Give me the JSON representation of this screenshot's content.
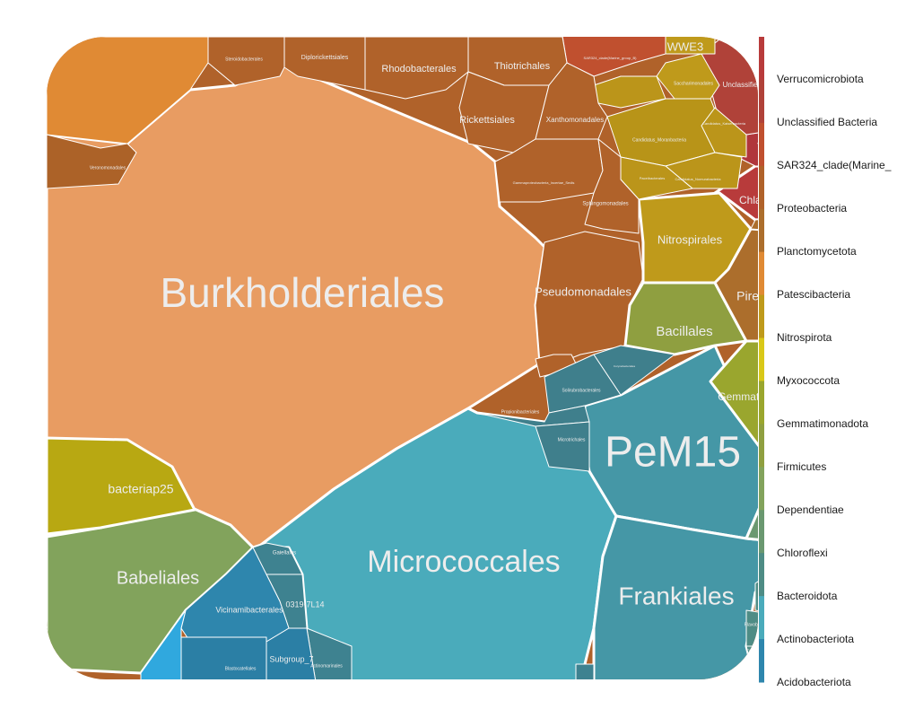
{
  "chart_data": {
    "type": "voronoi_treemap",
    "title": "",
    "levels": [
      "phylum",
      "order"
    ],
    "legend": {
      "placement": "right",
      "entries": [
        {
          "label": "Verrucomicrobiota",
          "color": "#b83b3b"
        },
        {
          "label": "Unclassified Bacteria",
          "color": "#b04239"
        },
        {
          "label": "SAR324_clade(Marine_",
          "color": "#c0502f"
        },
        {
          "label": "Proteobacteria",
          "color": "#b0622a"
        },
        {
          "label": "Planctomycetota",
          "color": "#ac6e2c"
        },
        {
          "label": "Patescibacteria",
          "color": "#e08a34"
        },
        {
          "label": "Nitrospirota",
          "color": "#bf9a1b"
        },
        {
          "label": "Myxococcota",
          "color": "#d9c818"
        },
        {
          "label": "Gemmatimonadota",
          "color": "#9aa62e"
        },
        {
          "label": "Firmicutes",
          "color": "#8f9f40"
        },
        {
          "label": "Dependentiae",
          "color": "#82a35c"
        },
        {
          "label": "Chloroflexi",
          "color": "#6a9870"
        },
        {
          "label": "Bacteroidota",
          "color": "#4e8c85"
        },
        {
          "label": "Actinobacteriota",
          "color": "#4aabbb"
        },
        {
          "label": "Acidobacteriota",
          "color": "#2e86ad"
        }
      ]
    },
    "cells": [
      {
        "id": "burkholderiales",
        "label": "Burkholderiales",
        "group": "Proteobacteria",
        "color": "#e89c62"
      },
      {
        "id": "micrococcales",
        "label": "Micrococcales",
        "group": "Actinobacteriota",
        "color": "#4aabbb"
      },
      {
        "id": "pem15",
        "label": "PeM15",
        "group": "Actinobacteriota",
        "color": "#4597a6"
      },
      {
        "id": "frankiales",
        "label": "Frankiales",
        "group": "Actinobacteriota",
        "color": "#4597a6"
      },
      {
        "id": "babeliales",
        "label": "Babeliales",
        "group": "Dependentiae",
        "color": "#82a35c"
      },
      {
        "id": "bacteriap25",
        "label": "bacteriap25",
        "group": "Myxococcota",
        "color": "#b8a812"
      },
      {
        "id": "pseudomonadales",
        "label": "Pseudomonadales",
        "group": "Proteobacteria",
        "color": "#b0622a"
      },
      {
        "id": "nitrospirales",
        "label": "Nitrospirales",
        "group": "Nitrospirota",
        "color": "#bf9a1b"
      },
      {
        "id": "bacillales",
        "label": "Bacillales",
        "group": "Firmicutes",
        "color": "#8f9f40"
      },
      {
        "id": "gemmatimonadales",
        "label": "Gemmatimonadales",
        "group": "Gemmatimonadota",
        "color": "#9aa62e"
      },
      {
        "id": "pirellulales",
        "label": "Pirellulales",
        "group": "Planctomycetota",
        "color": "#ac6e2c"
      },
      {
        "id": "chlamydiales",
        "label": "Chlamydiales",
        "group": "Verrucomicrobiota",
        "color": "#b83b3b"
      },
      {
        "id": "verrucomicrobiales",
        "label": "Verrucomicrobiales",
        "group": "Verrucomicrobiota",
        "color": "#b0363b"
      },
      {
        "id": "unclassified-bacteria",
        "label": "Unclassified Bacteria",
        "group": "Unclassified Bacteria",
        "color": "#b04239"
      },
      {
        "id": "sar324",
        "label": "SAR324_clade(Marine_group_B)",
        "group": "SAR324_clade(Marine_",
        "color": "#c0502f"
      },
      {
        "id": "wwe3",
        "label": "WWE3",
        "group": "Patescibacteria",
        "color": "#bf9a1b"
      },
      {
        "id": "saccharimonadales",
        "label": "Saccharimonadales",
        "group": "Patescibacteria",
        "color": "#bf9a1b"
      },
      {
        "id": "candidatus-moranbacteria",
        "label": "Candidatus_Moranbacteria",
        "group": "Patescibacteria",
        "color": "#b89418"
      },
      {
        "id": "candidatus-kaiserbacteria",
        "label": "Candidatus_Kaiserbacteria",
        "group": "Patescibacteria",
        "color": "#bb951a"
      },
      {
        "id": "candidatus-nomurabacteria",
        "label": "Candidatus_Nomurabacteria",
        "group": "Patescibacteria",
        "color": "#bb951a"
      },
      {
        "id": "paceibacterales",
        "label": "Paceibacterales",
        "group": "Patescibacteria",
        "color": "#bb951a"
      },
      {
        "id": "patescibacteria-small",
        "label": "",
        "group": "Patescibacteria",
        "color": "#bb951a"
      },
      {
        "id": "unlabeled-orange",
        "label": "",
        "group": "Patescibacteria",
        "color": "#e08a34"
      },
      {
        "id": "thiotrichales",
        "label": "Thiotrichales",
        "group": "Proteobacteria",
        "color": "#b0622a"
      },
      {
        "id": "rhodobacterales",
        "label": "Rhodobacterales",
        "group": "Proteobacteria",
        "color": "#b0622a"
      },
      {
        "id": "diplorickettsiales",
        "label": "Diplorickettsiales",
        "group": "Proteobacteria",
        "color": "#b0622a"
      },
      {
        "id": "steroidobacterales",
        "label": "Steroidobacterales",
        "group": "Proteobacteria",
        "color": "#b0622a"
      },
      {
        "id": "rickettsiales",
        "label": "Rickettsiales",
        "group": "Proteobacteria",
        "color": "#b0622a"
      },
      {
        "id": "xanthomonadales",
        "label": "Xanthomonadales",
        "group": "Proteobacteria",
        "color": "#b0622a"
      },
      {
        "id": "gammaproteobacteria-is",
        "label": "Gammaproteobacteria_Incertae_Sedis",
        "group": "Proteobacteria",
        "color": "#b0622a"
      },
      {
        "id": "sphingomonadales",
        "label": "Sphingomonadales",
        "group": "Proteobacteria",
        "color": "#b0622a"
      },
      {
        "id": "veronomonadales",
        "label": "Veronomonadales",
        "group": "Proteobacteria",
        "color": "#ac6228"
      },
      {
        "id": "proteo-small",
        "label": "",
        "group": "Proteobacteria",
        "color": "#b0622a"
      },
      {
        "id": "plancto-small",
        "label": "Planctomycetales",
        "group": "Planctomycetota",
        "color": "#ac6e2c"
      },
      {
        "id": "solirubrobacterales",
        "label": "Solirubrobacterales",
        "group": "Actinobacteriota",
        "color": "#3f7f8c"
      },
      {
        "id": "propionibacteriales",
        "label": "Propionibacteriales",
        "group": "Actinobacteriota",
        "color": "#3f7f8c"
      },
      {
        "id": "microtrichales",
        "label": "Microtrichales",
        "group": "Actinobacteriota",
        "color": "#3f7f8c"
      },
      {
        "id": "actino-top",
        "label": "Corynebacteriales",
        "group": "Actinobacteriota",
        "color": "#3f7f8c"
      },
      {
        "id": "gaiellales",
        "label": "Gaiellales",
        "group": "Actinobacteriota",
        "color": "#3e8290"
      },
      {
        "id": "0319-7l14",
        "label": "0319-7L14",
        "group": "Actinobacteriota",
        "color": "#3e8290"
      },
      {
        "id": "actinomarinales",
        "label": "Actinomarinales",
        "group": "Actinobacteriota",
        "color": "#3e8290"
      },
      {
        "id": "actino-bottom-small",
        "label": "",
        "group": "Actinobacteriota",
        "color": "#3e8290"
      },
      {
        "id": "vicinamibacterales",
        "label": "Vicinamibacterales",
        "group": "Acidobacteriota",
        "color": "#2e86ad"
      },
      {
        "id": "blastocatellales",
        "label": "Blastocatellales",
        "group": "Acidobacteriota",
        "color": "#2b7fa5"
      },
      {
        "id": "subgroup-7",
        "label": "Subgroup_7",
        "group": "Acidobacteriota",
        "color": "#2b7fa5"
      },
      {
        "id": "acido-light",
        "label": "",
        "group": "Acidobacteriota",
        "color": "#30a8de"
      },
      {
        "id": "chloroflexi-1-20",
        "label": "1-20",
        "group": "Chloroflexi",
        "color": "#6a9870"
      },
      {
        "id": "sphingobacteriales",
        "label": "Sphingobacteriales",
        "group": "Bacteroidota",
        "color": "#4e8c85"
      },
      {
        "id": "flavobacteriales",
        "label": "Flavobacteriales",
        "group": "Bacteroidota",
        "color": "#4e8c85"
      },
      {
        "id": "chitinophagales",
        "label": "Chitinophagales",
        "group": "Bacteroidota",
        "color": "#4e8c85"
      },
      {
        "id": "cytophagales",
        "label": "Cytophagales",
        "group": "Bacteroidota",
        "color": "#4e8c85"
      }
    ]
  }
}
